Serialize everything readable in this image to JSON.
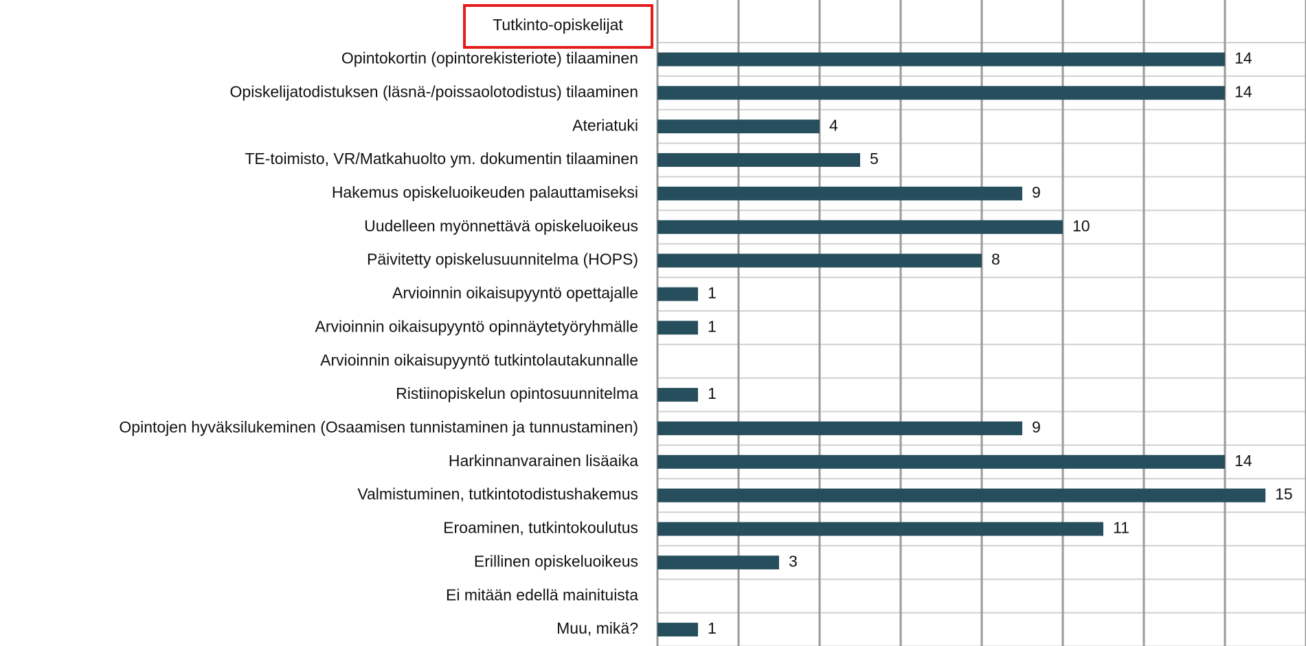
{
  "chart_data": {
    "type": "bar",
    "orientation": "horizontal",
    "title": "Tutkinto-opiskelijat",
    "categories": [
      "Opintokortin (opintorekisteriote) tilaaminen",
      "Opiskelijatodistuksen (läsnä-/poissaolotodistus) tilaaminen",
      "Ateriatuki",
      "TE-toimisto, VR/Matkahuolto ym. dokumentin tilaaminen",
      "Hakemus opiskeluoikeuden palauttamiseksi",
      "Uudelleen myönnettävä opiskeluoikeus",
      "Päivitetty opiskelusuunnitelma (HOPS)",
      "Arvioinnin oikaisupyyntö opettajalle",
      "Arvioinnin oikaisupyyntö opinnäytetyöryhmälle",
      "Arvioinnin oikaisupyyntö tutkintolautakunnalle",
      "Ristiinopiskelun opintosuunnitelma",
      "Opintojen hyväksilukeminen (Osaamisen tunnistaminen ja tunnustaminen)",
      "Harkinnanvarainen lisäaika",
      "Valmistuminen, tutkintotodistushakemus",
      "Eroaminen, tutkintokoulutus",
      "Erillinen opiskeluoikeus",
      "Ei mitään edellä mainituista",
      "Muu, mikä?"
    ],
    "values": [
      14,
      14,
      4,
      5,
      9,
      10,
      8,
      1,
      1,
      null,
      1,
      9,
      14,
      15,
      11,
      3,
      null,
      1
    ],
    "color": "#274e5c",
    "xlim": [
      0,
      16
    ],
    "xticks": [
      0,
      2,
      4,
      6,
      8,
      10,
      12,
      14,
      16
    ],
    "grid": true
  }
}
